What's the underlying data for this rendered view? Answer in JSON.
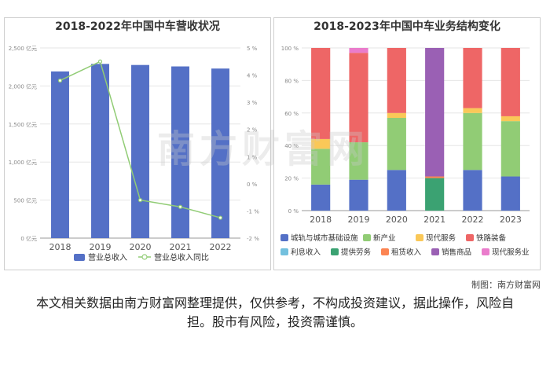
{
  "left_chart": {
    "title": "2018-2022年中国中车营收状况",
    "legend_revenue": "营业总收入",
    "legend_yoy": "营业总收入同比"
  },
  "right_chart": {
    "title": "2018-2023年中国中车业务结构变化"
  },
  "watermark": "南方财富网",
  "credit": "制图：南方财富网",
  "disclaimer": "本文相关数据由南方财富网整理提供，仅供参考，不构成投资建议，据此操作，风险自担。股市有风险，投资需谨慎。",
  "chart_data": [
    {
      "type": "bar",
      "title": "2018-2022年中国中车营收状况",
      "categories": [
        "2018",
        "2019",
        "2020",
        "2021",
        "2022"
      ],
      "series": [
        {
          "name": "营业总收入",
          "type": "bar",
          "axis": "left",
          "color": "#5470c6",
          "values": [
            2191,
            2290,
            2276,
            2257,
            2229
          ]
        },
        {
          "name": "营业总收入同比",
          "type": "line",
          "axis": "right",
          "color": "#91cc75",
          "values": [
            3.8,
            4.5,
            -0.6,
            -0.85,
            -1.25
          ]
        }
      ],
      "y_left": {
        "min": 0,
        "max": 2500,
        "ticks": [
          0,
          500,
          1000,
          1500,
          2000,
          2500
        ],
        "unit": "亿元"
      },
      "y_right": {
        "min": -2,
        "max": 5,
        "ticks": [
          -2,
          -1,
          0,
          1,
          2,
          3,
          4,
          5
        ],
        "unit": "%"
      },
      "legend_placement": "bottom",
      "grid": true
    },
    {
      "type": "bar",
      "stacked": true,
      "title": "2018-2023年中国中车业务结构变化",
      "categories": [
        "2018",
        "2019",
        "2020",
        "2021",
        "2022",
        "2023"
      ],
      "series": [
        {
          "name": "城轨与城市基础设施",
          "color": "#5470c6",
          "values": [
            16,
            19,
            25,
            0,
            25,
            21
          ]
        },
        {
          "name": "新产业",
          "color": "#91cc75",
          "values": [
            22,
            23,
            32,
            0,
            35,
            34
          ]
        },
        {
          "name": "现代服务",
          "color": "#fac858",
          "values": [
            6,
            0,
            3,
            0,
            3,
            3
          ]
        },
        {
          "name": "铁路装备",
          "color": "#ee6666",
          "values": [
            56,
            55,
            40,
            0,
            37,
            42
          ]
        },
        {
          "name": "利息收入",
          "color": "#73c0de",
          "values": [
            0,
            0,
            0,
            0,
            0,
            0
          ]
        },
        {
          "name": "提供劳务",
          "color": "#3ba272",
          "values": [
            0,
            0,
            0,
            20,
            0,
            0
          ]
        },
        {
          "name": "租赁收入",
          "color": "#fc8452",
          "values": [
            0,
            0,
            0,
            1,
            0,
            0
          ]
        },
        {
          "name": "销售商品",
          "color": "#9a60b4",
          "values": [
            0,
            0,
            0,
            79,
            0,
            0
          ]
        },
        {
          "name": "现代服务业",
          "color": "#ea7ccc",
          "values": [
            0,
            3,
            0,
            0,
            0,
            0
          ]
        }
      ],
      "y": {
        "min": 0,
        "max": 100,
        "ticks": [
          0,
          20,
          40,
          60,
          80,
          100
        ],
        "unit": "%"
      },
      "legend_placement": "bottom",
      "grid": true
    }
  ]
}
